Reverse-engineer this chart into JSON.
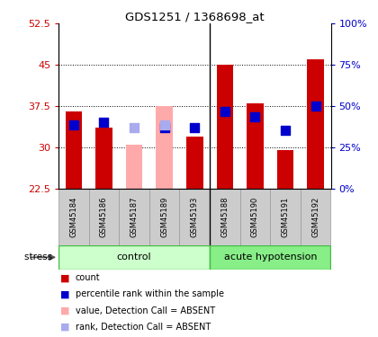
{
  "title": "GDS1251 / 1368698_at",
  "samples": [
    "GSM45184",
    "GSM45186",
    "GSM45187",
    "GSM45189",
    "GSM45193",
    "GSM45188",
    "GSM45190",
    "GSM45191",
    "GSM45192"
  ],
  "ctrl_count": 5,
  "red_values": [
    36.5,
    33.5,
    null,
    null,
    32.0,
    45.0,
    38.0,
    29.5,
    46.0
  ],
  "pink_values": [
    null,
    null,
    30.5,
    37.5,
    null,
    null,
    null,
    null,
    null
  ],
  "blue_squares": [
    34.0,
    34.5,
    null,
    33.5,
    33.5,
    36.5,
    35.5,
    33.0,
    37.5
  ],
  "lavender_squares": [
    null,
    null,
    33.5,
    34.0,
    null,
    null,
    null,
    null,
    null
  ],
  "ylim": [
    22.5,
    52.5
  ],
  "yticks_left": [
    22.5,
    30.0,
    37.5,
    45.0,
    52.5
  ],
  "red_color": "#cc0000",
  "pink_color": "#ffaaaa",
  "blue_color": "#0000cc",
  "lavender_color": "#aaaaee",
  "bar_width": 0.55,
  "blue_sq_size": 55,
  "legend_items": [
    {
      "color": "#cc0000",
      "label": "count"
    },
    {
      "color": "#0000cc",
      "label": "percentile rank within the sample"
    },
    {
      "color": "#ffaaaa",
      "label": "value, Detection Call = ABSENT"
    },
    {
      "color": "#aaaaee",
      "label": "rank, Detection Call = ABSENT"
    }
  ]
}
